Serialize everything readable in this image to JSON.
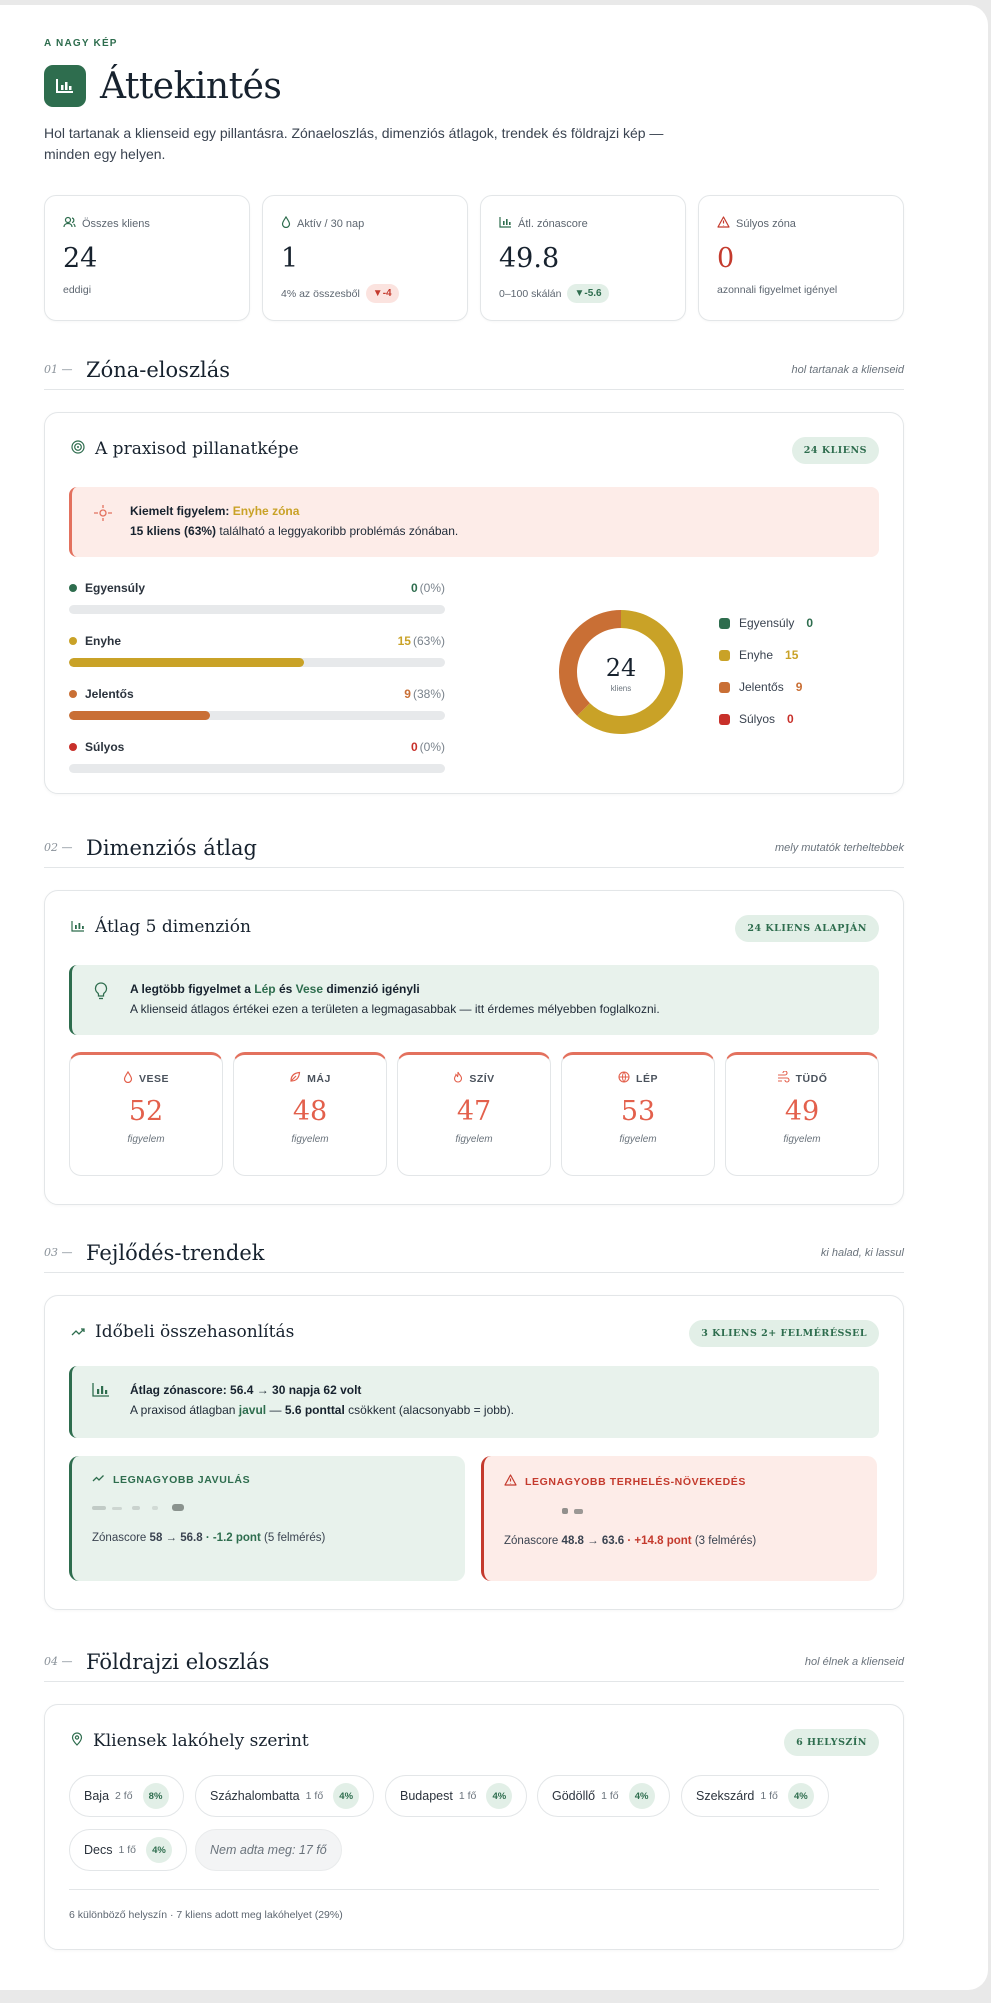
{
  "header": {
    "eyebrow": "A NAGY KÉP",
    "title": "Áttekintés",
    "lede": "Hol tartanak a klienseid egy pillantásra. Zónaeloszlás, dimenziós átlagok, trendek és földrajzi kép — minden egy helyen."
  },
  "stats": [
    {
      "label": "Összes kliens",
      "value": "24",
      "sub": "eddigi",
      "icon": "users-icon"
    },
    {
      "label": "Aktív / 30 nap",
      "value": "1",
      "sub": "4% az összesből",
      "pill": "▼-4",
      "icon": "drop-icon"
    },
    {
      "label": "Átl. zónascore",
      "value": "49.8",
      "sub": "0–100 skálán",
      "pill": "▼-5.6",
      "icon": "chart-icon"
    },
    {
      "label": "Súlyos zóna",
      "value": "0",
      "sub": "azonnali figyelmet igényel",
      "icon": "warning-icon"
    }
  ],
  "sections": [
    {
      "num": "01 —",
      "title": "Zóna-eloszlás",
      "note": "hol tartanak a klienseid"
    },
    {
      "num": "02 —",
      "title": "Dimenziós átlag",
      "note": "mely mutatók terheltebbek"
    },
    {
      "num": "03 —",
      "title": "Fejlődés-trendek",
      "note": "ki halad, ki lassul"
    },
    {
      "num": "04 —",
      "title": "Földrajzi eloszlás",
      "note": "hol élnek a klienseid"
    }
  ],
  "zones": {
    "card_title": "A praxisod pillanatképe",
    "badge": "24 KLIENS",
    "callout_lead": "Kiemelt figyelem:",
    "callout_zone": "Enyhe zóna",
    "callout_count": "15 kliens (63%)",
    "callout_rest": "található a leggyakoribb problémás zónában.",
    "donut_total": "24",
    "donut_unit": "kliens",
    "items": [
      {
        "name": "Egyensúly",
        "count": "0",
        "pct": "(0%)",
        "frac": 0,
        "color": "#2e6d4e"
      },
      {
        "name": "Enyhe",
        "count": "15",
        "pct": "(63%)",
        "frac": 0.625,
        "color": "#c9a227"
      },
      {
        "name": "Jelentős",
        "count": "9",
        "pct": "(38%)",
        "frac": 0.375,
        "color": "#c96f35"
      },
      {
        "name": "Súlyos",
        "count": "0",
        "pct": "(0%)",
        "frac": 0,
        "color": "#c8302a"
      }
    ]
  },
  "dimensions": {
    "card_title": "Átlag 5 dimenzión",
    "badge": "24 KLIENS ALAPJÁN",
    "callout_a": "A legtöbb figyelmet a",
    "callout_b": "Lép",
    "callout_c": "és",
    "callout_d": "Vese",
    "callout_e": "dimenzió igényli",
    "callout_sub": "A klienseid átlagos értékei ezen a területen a legmagasabbak — itt érdemes mélyebben foglalkozni.",
    "items": [
      {
        "name": "VESE",
        "value": "52",
        "sub": "figyelem",
        "icon": "drop-icon"
      },
      {
        "name": "MÁJ",
        "value": "48",
        "sub": "figyelem",
        "icon": "leaf-icon"
      },
      {
        "name": "SZÍV",
        "value": "47",
        "sub": "figyelem",
        "icon": "flame-icon"
      },
      {
        "name": "LÉP",
        "value": "53",
        "sub": "figyelem",
        "icon": "globe-icon"
      },
      {
        "name": "TÜDŐ",
        "value": "49",
        "sub": "figyelem",
        "icon": "wind-icon"
      }
    ]
  },
  "trends": {
    "card_title": "Időbeli összehasonlítás",
    "badge": "3 KLIENS 2+ FELMÉRÉSSEL",
    "callout_title": "Átlag zónascore: 56.4 → 30 napja 62 volt",
    "callout_a": "A praxisod átlagban",
    "callout_b": "javul",
    "callout_c": "—",
    "callout_d": "5.6 ponttal",
    "callout_e": "csökkent (alacsonyabb = jobb).",
    "best_head": "LEGNAGYOBB JAVULÁS",
    "best_a": "Zónascore",
    "best_b": "58 → 56.8",
    "best_c": "· -1.2 pont",
    "best_d": "(5 felmérés)",
    "worst_head": "LEGNAGYOBB TERHELÉS-NÖVEKEDÉS",
    "worst_a": "Zónascore",
    "worst_b": "48.8 → 63.6",
    "worst_c": "· +14.8 pont",
    "worst_d": "(3 felmérés)"
  },
  "geo": {
    "card_title": "Kliensek lakóhely szerint",
    "badge": "6 HELYSZÍN",
    "places": [
      {
        "name": "Baja",
        "n": "2 fő",
        "p": "8%"
      },
      {
        "name": "Százhalombatta",
        "n": "1 fő",
        "p": "4%"
      },
      {
        "name": "Budapest",
        "n": "1 fő",
        "p": "4%"
      },
      {
        "name": "Gödöllő",
        "n": "1 fő",
        "p": "4%"
      },
      {
        "name": "Szekszárd",
        "n": "1 fő",
        "p": "4%"
      },
      {
        "name": "Decs",
        "n": "1 fő",
        "p": "4%"
      }
    ],
    "missing": "Nem adta meg: 17 fő",
    "footer": "6 különböző helyszín · 7 kliens adott meg lakóhelyet (29%)"
  }
}
